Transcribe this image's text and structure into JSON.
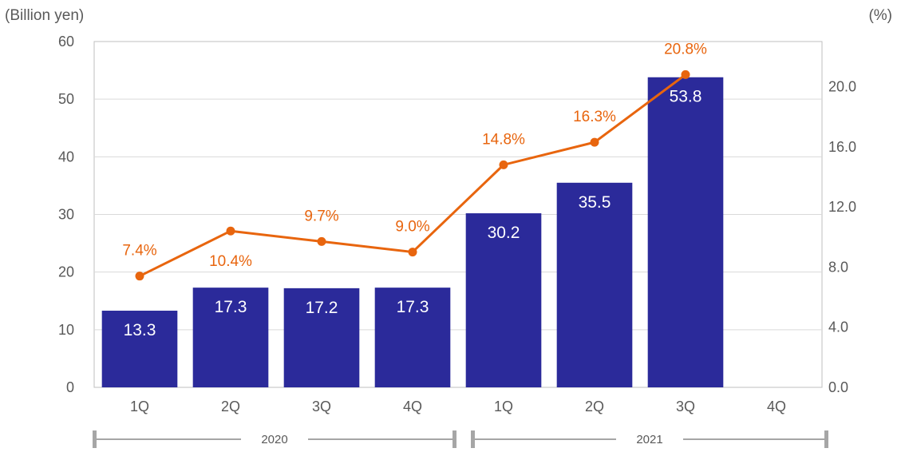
{
  "chart_data": {
    "type": "bar",
    "y_left_label": "(Billion yen)",
    "y_right_label": "(%)",
    "ylim": [
      0,
      60
    ],
    "y_left_ticks": [
      "0",
      "10",
      "20",
      "30",
      "40",
      "50",
      "60"
    ],
    "y2lim": [
      0,
      23
    ],
    "y_right_ticks": [
      "0.0",
      "4.0",
      "8.0",
      "12.0",
      "16.0",
      "20.0"
    ],
    "categories": [
      "1Q",
      "2Q",
      "3Q",
      "4Q",
      "1Q",
      "2Q",
      "3Q",
      "4Q"
    ],
    "groups": [
      {
        "label": "2020",
        "categories": [
          "1Q",
          "2Q",
          "3Q",
          "4Q"
        ]
      },
      {
        "label": "2021",
        "categories": [
          "1Q",
          "2Q",
          "3Q",
          "4Q"
        ]
      }
    ],
    "series": [
      {
        "type": "bar",
        "axis": "left",
        "color": "#2B2A9A",
        "values": [
          13.3,
          17.3,
          17.2,
          17.3,
          30.2,
          35.5,
          53.8,
          null
        ],
        "labels": [
          "13.3",
          "17.3",
          "17.2",
          "17.3",
          "30.2",
          "35.5",
          "53.8",
          null
        ]
      },
      {
        "type": "line",
        "axis": "right",
        "color": "#E8650E",
        "values": [
          7.4,
          10.4,
          9.7,
          9.0,
          14.8,
          16.3,
          20.8,
          null
        ],
        "labels": [
          "7.4%",
          "10.4%",
          "9.7%",
          "9.0%",
          "14.8%",
          "16.3%",
          "20.8%",
          null
        ]
      }
    ],
    "grid": true,
    "grid_color": "#D9D9D9"
  }
}
